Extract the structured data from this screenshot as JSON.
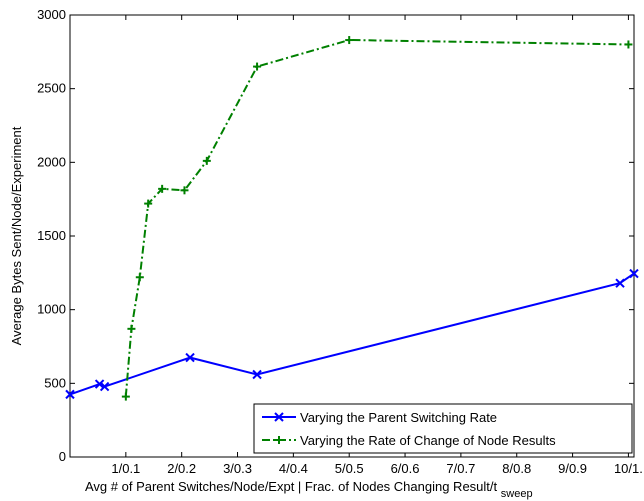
{
  "chart_data": {
    "type": "line",
    "title": "",
    "xlabel": "Avg # of Parent Switches/Node/Expt | Frac. of Nodes Changing Result/t",
    "xlabel_subscript": "sweep",
    "ylabel": "Average Bytes Sent/Node/Experiment",
    "xlim": [
      0,
      10.1
    ],
    "ylim": [
      0,
      3000
    ],
    "x_ticks": [
      1,
      2,
      3,
      4,
      5,
      6,
      7,
      8,
      9,
      10
    ],
    "x_tick_labels": [
      "1/0.1",
      "2/0.2",
      "3/0.3",
      "4/0.4",
      "5/0.5",
      "6/0.6",
      "7/0.7",
      "8/0.8",
      "9/0.9",
      "10/1."
    ],
    "y_ticks": [
      0,
      500,
      1000,
      1500,
      2000,
      2500,
      3000
    ],
    "y_tick_labels": [
      "0",
      "500",
      "1000",
      "1500",
      "2000",
      "2500",
      "3000"
    ],
    "grid": false,
    "legend_position": "bottom-right",
    "series": [
      {
        "name": "Varying the Parent Switching Rate",
        "color": "#0000ff",
        "line_style": "solid",
        "marker": "x",
        "x": [
          0.0,
          0.53,
          0.62,
          2.15,
          3.35,
          9.85,
          10.1
        ],
        "y": [
          425,
          495,
          478,
          675,
          560,
          1180,
          1245
        ]
      },
      {
        "name": "Varying the Rate of Change of Node Results",
        "color": "#008000",
        "line_style": "dashdot",
        "marker": "+",
        "x": [
          1.0,
          1.1,
          1.25,
          1.4,
          1.65,
          2.05,
          2.45,
          3.35,
          5.0,
          10.0
        ],
        "y": [
          410,
          870,
          1220,
          1720,
          1820,
          1810,
          2010,
          2650,
          2830,
          2800
        ]
      }
    ]
  }
}
